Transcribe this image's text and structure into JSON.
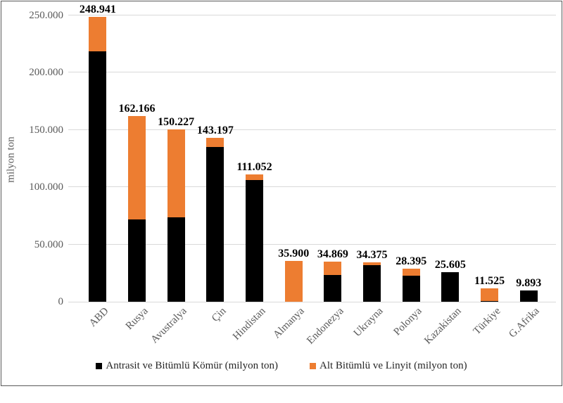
{
  "chart_data": {
    "type": "bar",
    "stacked": true,
    "title": "",
    "xlabel": "",
    "ylabel": "milyon ton",
    "ylim": [
      0,
      250000
    ],
    "grid": true,
    "legend_position": "bottom",
    "yticks": [
      {
        "value": 0,
        "label": "0"
      },
      {
        "value": 50000,
        "label": "50.000"
      },
      {
        "value": 100000,
        "label": "100.000"
      },
      {
        "value": 150000,
        "label": "150.000"
      },
      {
        "value": 200000,
        "label": "200.000"
      },
      {
        "value": 250000,
        "label": "250.000"
      }
    ],
    "categories": [
      "ABD",
      "Rusya",
      "Avustralya",
      "Çin",
      "Hindistan",
      "Almanya",
      "Endonezya",
      "Ukrayna",
      "Polonya",
      "Kazakistan",
      "Türkiye",
      "G.Afrika"
    ],
    "series": [
      {
        "name": "Antrasit ve Bitümlü Kömür (milyon ton)",
        "color": "#000000",
        "values": [
          218938,
          71719,
          73719,
          135069,
          105979,
          0,
          23141,
          32039,
          22530,
          25605,
          550,
          9893
        ]
      },
      {
        "name": "Alt Bitümlü ve Linyit (milyon ton)",
        "color": "#ED7D31",
        "values": [
          30003,
          90447,
          76508,
          8128,
          5073,
          35900,
          11728,
          2336,
          5865,
          0,
          10975,
          0
        ]
      }
    ],
    "totals": [
      248941,
      162166,
      150227,
      143197,
      111052,
      35900,
      34869,
      34375,
      28395,
      25605,
      11525,
      9893
    ],
    "total_labels": [
      "248.941",
      "162.166",
      "150.227",
      "143.197",
      "111.052",
      "35.900",
      "34.869",
      "34.375",
      "28.395",
      "25.605",
      "11.525",
      "9.893"
    ]
  },
  "colors": {
    "gridline": "#d9d9d9",
    "axis_text": "#595959",
    "value_label": "#000000",
    "legend_text": "#262626",
    "frame_border": "#595959",
    "background": "#ffffff"
  }
}
